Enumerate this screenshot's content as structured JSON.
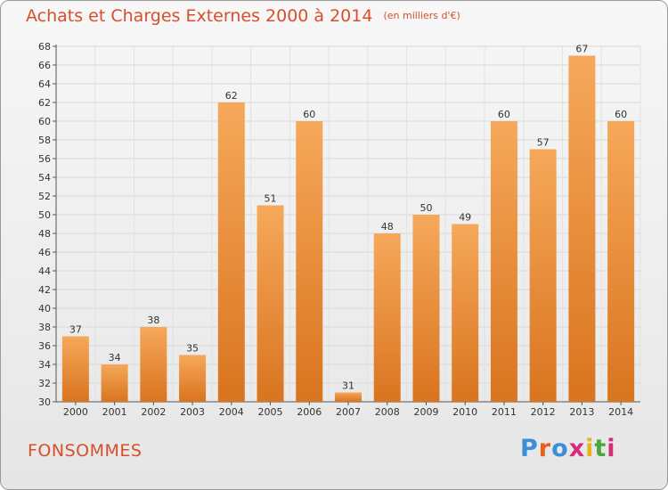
{
  "header": {
    "title": "Achats et Charges Externes 2000 à 2014",
    "unit": "(en milliers d'€)"
  },
  "footer": {
    "place": "FONSOMMES",
    "logo": "Proxiti",
    "logo_colors": [
      "#3a8fd8",
      "#e8611a",
      "#3a8fd8",
      "#d62d7a",
      "#e8b21a",
      "#4aa83a",
      "#d62d7a"
    ]
  },
  "colors": {
    "accent": "#d64f2a",
    "bar_light": "#f6a85a",
    "bar_dark": "#d9741f"
  },
  "chart_data": {
    "type": "bar",
    "title": "Achats et Charges Externes 2000 à 2014",
    "subtitle": "(en milliers d'€)",
    "categories": [
      "2000",
      "2001",
      "2002",
      "2003",
      "2004",
      "2005",
      "2006",
      "2007",
      "2008",
      "2009",
      "2010",
      "2011",
      "2012",
      "2013",
      "2014"
    ],
    "values": [
      37,
      34,
      38,
      35,
      62,
      51,
      60,
      31,
      48,
      50,
      49,
      60,
      57,
      67,
      60
    ],
    "ylim": [
      30,
      68
    ],
    "ytick_step": 2,
    "grid": true,
    "legend": "none",
    "data_labels": true
  }
}
